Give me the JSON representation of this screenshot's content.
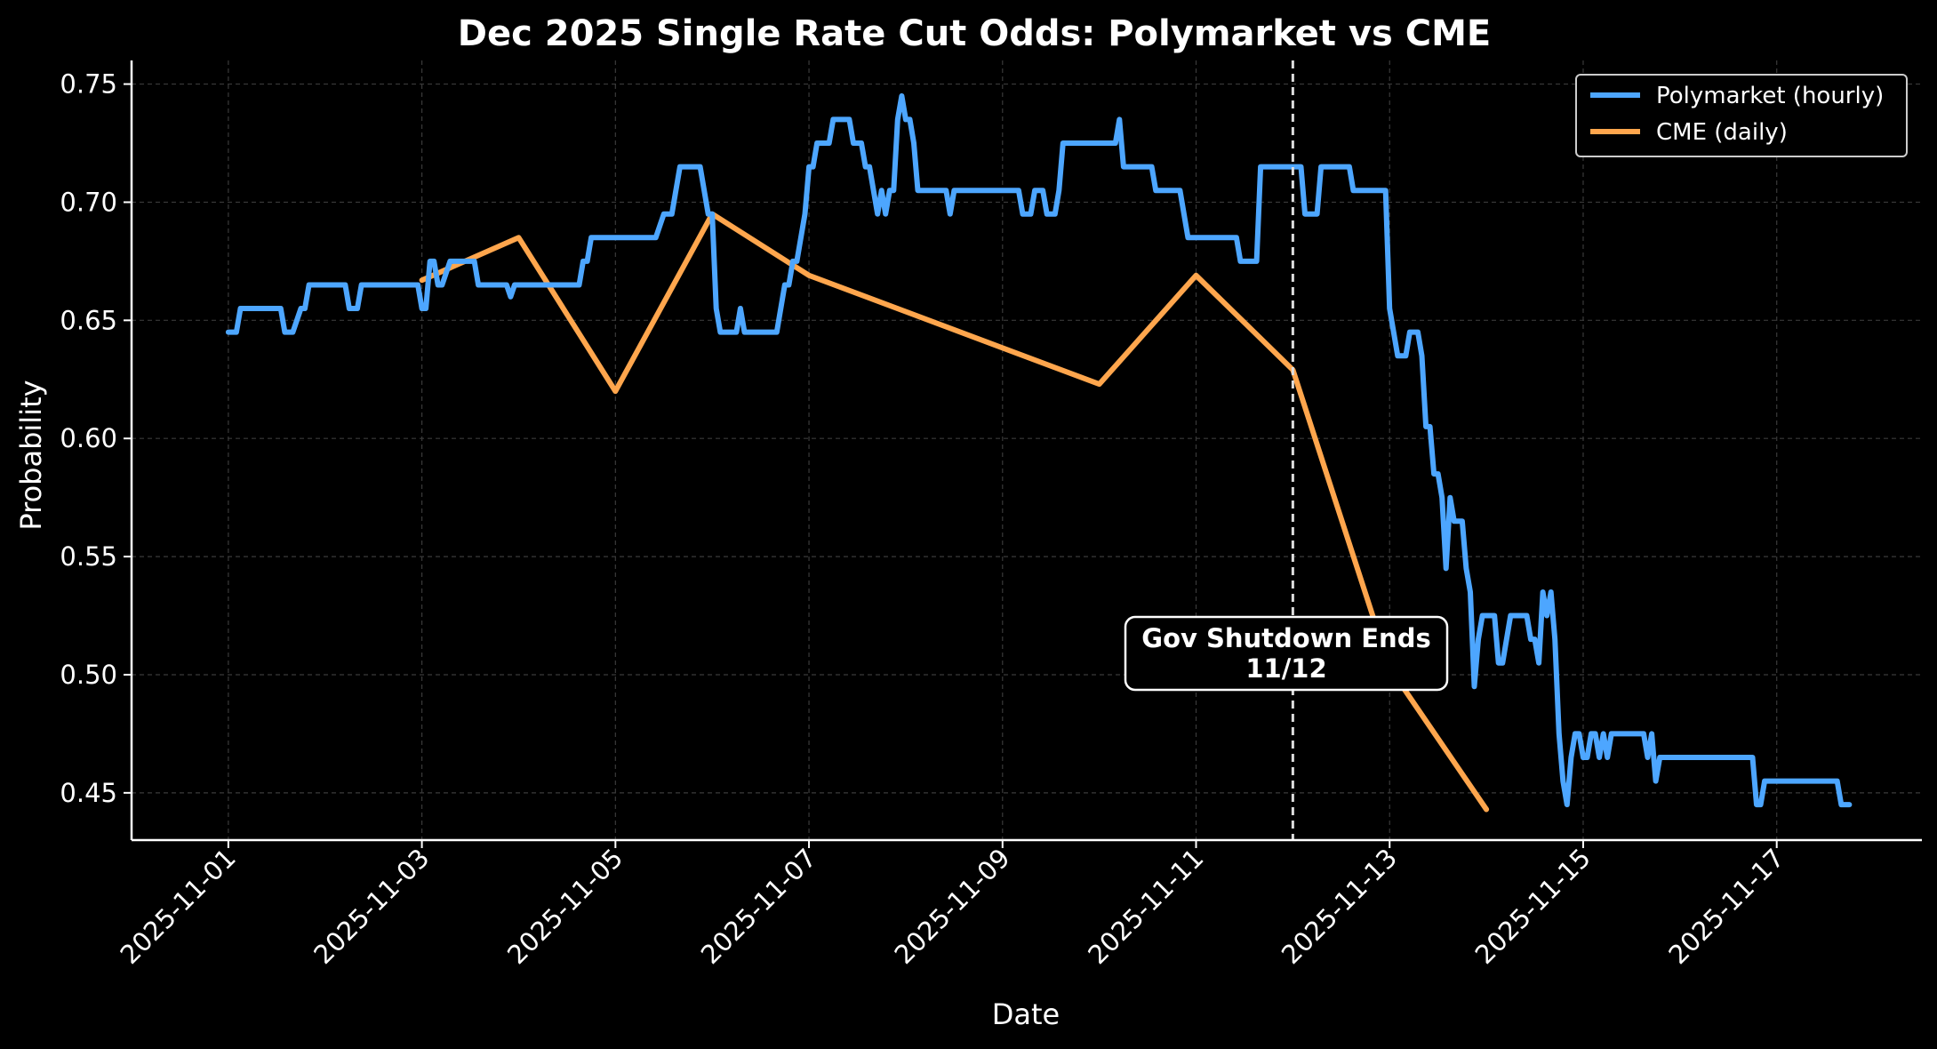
{
  "chart_data": {
    "type": "line",
    "title": "Dec 2025 Single Rate Cut Odds: Polymarket vs CME",
    "xlabel": "Date",
    "ylabel": "Probability",
    "x_axis": "date",
    "xlim": [
      "2025-10-31T00:00",
      "2025-11-18T12:00"
    ],
    "ylim": [
      0.43,
      0.76
    ],
    "xticks": [
      "2025-11-01",
      "2025-11-03",
      "2025-11-05",
      "2025-11-07",
      "2025-11-09",
      "2025-11-11",
      "2025-11-13",
      "2025-11-15",
      "2025-11-17"
    ],
    "yticks": [
      0.45,
      0.5,
      0.55,
      0.6,
      0.65,
      0.7,
      0.75
    ],
    "ytick_labels": [
      "0.45",
      "0.50",
      "0.55",
      "0.60",
      "0.65",
      "0.70",
      "0.75"
    ],
    "grid": true,
    "legend_position": "top-right",
    "colors": {
      "background": "#000000",
      "polymarket": "#4da6ff",
      "cme": "#ffa64d",
      "grid": "#3a3a3a",
      "axis": "#ffffff",
      "vline": "#dddddd"
    },
    "series": [
      {
        "name": "Polymarket (hourly)",
        "color": "#4da6ff",
        "points": [
          [
            "2025-11-01T00:00",
            0.645
          ],
          [
            "2025-11-01T02:00",
            0.645
          ],
          [
            "2025-11-01T03:00",
            0.655
          ],
          [
            "2025-11-01T13:00",
            0.655
          ],
          [
            "2025-11-01T14:00",
            0.645
          ],
          [
            "2025-11-01T16:00",
            0.645
          ],
          [
            "2025-11-01T18:00",
            0.655
          ],
          [
            "2025-11-01T19:00",
            0.655
          ],
          [
            "2025-11-01T20:00",
            0.665
          ],
          [
            "2025-11-02T05:00",
            0.665
          ],
          [
            "2025-11-02T06:00",
            0.655
          ],
          [
            "2025-11-02T08:00",
            0.655
          ],
          [
            "2025-11-02T09:00",
            0.665
          ],
          [
            "2025-11-02T23:00",
            0.665
          ],
          [
            "2025-11-03T00:00",
            0.655
          ],
          [
            "2025-11-03T01:00",
            0.655
          ],
          [
            "2025-11-03T02:00",
            0.675
          ],
          [
            "2025-11-03T03:00",
            0.675
          ],
          [
            "2025-11-03T04:00",
            0.665
          ],
          [
            "2025-11-03T05:00",
            0.665
          ],
          [
            "2025-11-03T07:00",
            0.675
          ],
          [
            "2025-11-03T13:00",
            0.675
          ],
          [
            "2025-11-03T14:00",
            0.665
          ],
          [
            "2025-11-03T21:00",
            0.665
          ],
          [
            "2025-11-03T22:00",
            0.66
          ],
          [
            "2025-11-03T23:00",
            0.665
          ],
          [
            "2025-11-04T15:00",
            0.665
          ],
          [
            "2025-11-04T16:00",
            0.675
          ],
          [
            "2025-11-04T17:00",
            0.675
          ],
          [
            "2025-11-04T18:00",
            0.685
          ],
          [
            "2025-11-05T10:00",
            0.685
          ],
          [
            "2025-11-05T12:00",
            0.695
          ],
          [
            "2025-11-05T14:00",
            0.695
          ],
          [
            "2025-11-05T16:00",
            0.715
          ],
          [
            "2025-11-05T21:00",
            0.715
          ],
          [
            "2025-11-05T23:00",
            0.695
          ],
          [
            "2025-11-06T00:00",
            0.695
          ],
          [
            "2025-11-06T01:00",
            0.655
          ],
          [
            "2025-11-06T02:00",
            0.645
          ],
          [
            "2025-11-06T06:00",
            0.645
          ],
          [
            "2025-11-06T07:00",
            0.655
          ],
          [
            "2025-11-06T08:00",
            0.645
          ],
          [
            "2025-11-06T16:00",
            0.645
          ],
          [
            "2025-11-06T18:00",
            0.665
          ],
          [
            "2025-11-06T19:00",
            0.665
          ],
          [
            "2025-11-06T20:00",
            0.675
          ],
          [
            "2025-11-06T21:00",
            0.675
          ],
          [
            "2025-11-06T23:00",
            0.695
          ],
          [
            "2025-11-07T00:00",
            0.715
          ],
          [
            "2025-11-07T01:00",
            0.715
          ],
          [
            "2025-11-07T02:00",
            0.725
          ],
          [
            "2025-11-07T05:00",
            0.725
          ],
          [
            "2025-11-07T06:00",
            0.735
          ],
          [
            "2025-11-07T10:00",
            0.735
          ],
          [
            "2025-11-07T11:00",
            0.725
          ],
          [
            "2025-11-07T13:00",
            0.725
          ],
          [
            "2025-11-07T14:00",
            0.715
          ],
          [
            "2025-11-07T15:00",
            0.715
          ],
          [
            "2025-11-07T17:00",
            0.695
          ],
          [
            "2025-11-07T18:00",
            0.705
          ],
          [
            "2025-11-07T19:00",
            0.695
          ],
          [
            "2025-11-07T20:00",
            0.705
          ],
          [
            "2025-11-07T21:00",
            0.705
          ],
          [
            "2025-11-07T22:00",
            0.735
          ],
          [
            "2025-11-07T23:00",
            0.745
          ],
          [
            "2025-11-08T00:00",
            0.735
          ],
          [
            "2025-11-08T01:00",
            0.735
          ],
          [
            "2025-11-08T02:00",
            0.725
          ],
          [
            "2025-11-08T03:00",
            0.705
          ],
          [
            "2025-11-08T10:00",
            0.705
          ],
          [
            "2025-11-08T11:00",
            0.695
          ],
          [
            "2025-11-08T12:00",
            0.705
          ],
          [
            "2025-11-09T04:00",
            0.705
          ],
          [
            "2025-11-09T05:00",
            0.695
          ],
          [
            "2025-11-09T07:00",
            0.695
          ],
          [
            "2025-11-09T08:00",
            0.705
          ],
          [
            "2025-11-09T10:00",
            0.705
          ],
          [
            "2025-11-09T11:00",
            0.695
          ],
          [
            "2025-11-09T13:00",
            0.695
          ],
          [
            "2025-11-09T14:00",
            0.705
          ],
          [
            "2025-11-09T15:00",
            0.725
          ],
          [
            "2025-11-10T04:00",
            0.725
          ],
          [
            "2025-11-10T05:00",
            0.735
          ],
          [
            "2025-11-10T06:00",
            0.715
          ],
          [
            "2025-11-10T13:00",
            0.715
          ],
          [
            "2025-11-10T14:00",
            0.705
          ],
          [
            "2025-11-10T20:00",
            0.705
          ],
          [
            "2025-11-10T22:00",
            0.685
          ],
          [
            "2025-11-11T10:00",
            0.685
          ],
          [
            "2025-11-11T11:00",
            0.675
          ],
          [
            "2025-11-11T15:00",
            0.675
          ],
          [
            "2025-11-11T16:00",
            0.715
          ],
          [
            "2025-11-12T02:00",
            0.715
          ],
          [
            "2025-11-12T03:00",
            0.695
          ],
          [
            "2025-11-12T06:00",
            0.695
          ],
          [
            "2025-11-12T07:00",
            0.715
          ],
          [
            "2025-11-12T14:00",
            0.715
          ],
          [
            "2025-11-12T15:00",
            0.705
          ],
          [
            "2025-11-12T23:00",
            0.705
          ],
          [
            "2025-11-13T00:00",
            0.655
          ],
          [
            "2025-11-13T02:00",
            0.635
          ],
          [
            "2025-11-13T04:00",
            0.635
          ],
          [
            "2025-11-13T05:00",
            0.645
          ],
          [
            "2025-11-13T07:00",
            0.645
          ],
          [
            "2025-11-13T08:00",
            0.635
          ],
          [
            "2025-11-13T09:00",
            0.605
          ],
          [
            "2025-11-13T10:00",
            0.605
          ],
          [
            "2025-11-13T11:00",
            0.585
          ],
          [
            "2025-11-13T12:00",
            0.585
          ],
          [
            "2025-11-13T13:00",
            0.575
          ],
          [
            "2025-11-13T14:00",
            0.545
          ],
          [
            "2025-11-13T15:00",
            0.575
          ],
          [
            "2025-11-13T16:00",
            0.565
          ],
          [
            "2025-11-13T18:00",
            0.565
          ],
          [
            "2025-11-13T19:00",
            0.545
          ],
          [
            "2025-11-13T20:00",
            0.535
          ],
          [
            "2025-11-13T21:00",
            0.495
          ],
          [
            "2025-11-13T22:00",
            0.515
          ],
          [
            "2025-11-13T23:00",
            0.525
          ],
          [
            "2025-11-14T02:00",
            0.525
          ],
          [
            "2025-11-14T03:00",
            0.505
          ],
          [
            "2025-11-14T04:00",
            0.505
          ],
          [
            "2025-11-14T06:00",
            0.525
          ],
          [
            "2025-11-14T10:00",
            0.525
          ],
          [
            "2025-11-14T11:00",
            0.515
          ],
          [
            "2025-11-14T12:00",
            0.515
          ],
          [
            "2025-11-14T13:00",
            0.505
          ],
          [
            "2025-11-14T14:00",
            0.535
          ],
          [
            "2025-11-14T15:00",
            0.525
          ],
          [
            "2025-11-14T16:00",
            0.535
          ],
          [
            "2025-11-14T17:00",
            0.515
          ],
          [
            "2025-11-14T18:00",
            0.475
          ],
          [
            "2025-11-14T19:00",
            0.455
          ],
          [
            "2025-11-14T20:00",
            0.445
          ],
          [
            "2025-11-14T21:00",
            0.465
          ],
          [
            "2025-11-14T22:00",
            0.475
          ],
          [
            "2025-11-14T23:00",
            0.475
          ],
          [
            "2025-11-15T00:00",
            0.465
          ],
          [
            "2025-11-15T01:00",
            0.465
          ],
          [
            "2025-11-15T02:00",
            0.475
          ],
          [
            "2025-11-15T03:00",
            0.475
          ],
          [
            "2025-11-15T04:00",
            0.465
          ],
          [
            "2025-11-15T05:00",
            0.475
          ],
          [
            "2025-11-15T06:00",
            0.465
          ],
          [
            "2025-11-15T07:00",
            0.475
          ],
          [
            "2025-11-15T15:00",
            0.475
          ],
          [
            "2025-11-15T16:00",
            0.465
          ],
          [
            "2025-11-15T17:00",
            0.475
          ],
          [
            "2025-11-15T18:00",
            0.455
          ],
          [
            "2025-11-15T19:00",
            0.465
          ],
          [
            "2025-11-16T18:00",
            0.465
          ],
          [
            "2025-11-16T19:00",
            0.445
          ],
          [
            "2025-11-16T20:00",
            0.445
          ],
          [
            "2025-11-16T21:00",
            0.455
          ],
          [
            "2025-11-17T15:00",
            0.455
          ],
          [
            "2025-11-17T16:00",
            0.445
          ],
          [
            "2025-11-17T18:00",
            0.445
          ]
        ]
      },
      {
        "name": "CME (daily)",
        "color": "#ffa64d",
        "points": [
          [
            "2025-11-03",
            0.667
          ],
          [
            "2025-11-04",
            0.685
          ],
          [
            "2025-11-05",
            0.62
          ],
          [
            "2025-11-06",
            0.695
          ],
          [
            "2025-11-07",
            0.669
          ],
          [
            "2025-11-10",
            0.623
          ],
          [
            "2025-11-11",
            0.669
          ],
          [
            "2025-11-12",
            0.629
          ],
          [
            "2025-11-13",
            0.503
          ],
          [
            "2025-11-14",
            0.443
          ]
        ]
      }
    ],
    "annotation": {
      "text_line1": "Gov Shutdown Ends",
      "text_line2": "11/12",
      "vline_x": "2025-11-12",
      "label_y": 0.5
    }
  }
}
